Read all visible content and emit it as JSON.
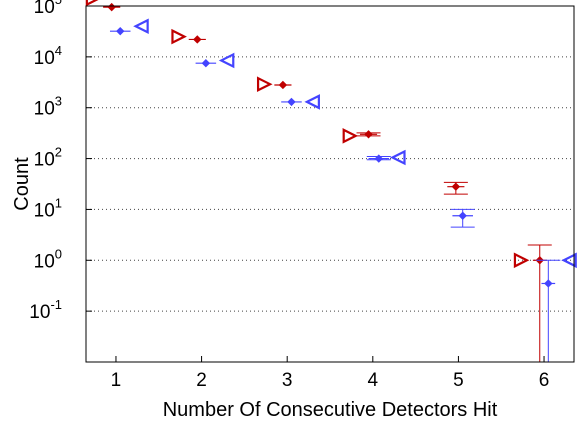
{
  "chart_data": {
    "type": "scatter",
    "xlabel": "Number Of Consecutive Detectors Hit",
    "ylabel": "Count",
    "yscale": "log",
    "xlim": [
      0.65,
      6.35
    ],
    "ylim": [
      0.01,
      100000
    ],
    "x_ticks": [
      "1",
      "2",
      "3",
      "4",
      "5",
      "6"
    ],
    "y_ticks": [
      {
        "base": "10",
        "exp": "-1",
        "value": 0.1
      },
      {
        "base": "10",
        "exp": "0",
        "value": 1
      },
      {
        "base": "10",
        "exp": "1",
        "value": 10
      },
      {
        "base": "10",
        "exp": "2",
        "value": 100
      },
      {
        "base": "10",
        "exp": "3",
        "value": 1000
      },
      {
        "base": "10",
        "exp": "4",
        "value": 10000
      },
      {
        "base": "10",
        "exp": "5",
        "value": 100000
      }
    ],
    "grid": true,
    "series": [
      {
        "color": "#c00000",
        "marker": "triangle-right",
        "points": [
          {
            "x": 0.73,
            "y": 140000
          },
          {
            "x": 1.73,
            "y": 25000
          },
          {
            "x": 2.73,
            "y": 2900
          },
          {
            "x": 3.73,
            "y": 280
          },
          {
            "x": 5.73,
            "y": 1.0
          }
        ]
      },
      {
        "color": "#c00000",
        "marker": "diamond",
        "points": [
          {
            "x": 0.95,
            "y": 95000,
            "ylo": 95000,
            "yhi": 95000,
            "xlo": 0.85,
            "xhi": 1.05
          },
          {
            "x": 1.95,
            "y": 22000,
            "ylo": 22000,
            "yhi": 22000,
            "xlo": 1.85,
            "xhi": 2.05
          },
          {
            "x": 2.95,
            "y": 2800,
            "ylo": 2800,
            "yhi": 2800,
            "xlo": 2.85,
            "xhi": 3.05
          },
          {
            "x": 3.95,
            "y": 300,
            "ylo": 280,
            "yhi": 320,
            "xlo": 3.85,
            "xhi": 4.05
          },
          {
            "x": 4.97,
            "y": 28,
            "ylo": 20,
            "yhi": 34,
            "xlo": 4.87,
            "xhi": 5.07
          },
          {
            "x": 5.95,
            "y": 1.0,
            "ylo": 0.01,
            "yhi": 2.0,
            "xlo": 5.87,
            "xhi": 6.03
          }
        ]
      },
      {
        "color": "#4444ff",
        "marker": "diamond",
        "points": [
          {
            "x": 1.05,
            "y": 32000,
            "ylo": 32000,
            "yhi": 32000,
            "xlo": 0.93,
            "xhi": 1.17
          },
          {
            "x": 2.05,
            "y": 7500,
            "ylo": 7500,
            "yhi": 7500,
            "xlo": 1.93,
            "xhi": 2.17
          },
          {
            "x": 3.05,
            "y": 1300,
            "ylo": 1300,
            "yhi": 1300,
            "xlo": 2.93,
            "xhi": 3.17
          },
          {
            "x": 4.07,
            "y": 100,
            "ylo": 95,
            "yhi": 110,
            "xlo": 3.95,
            "xhi": 4.19
          },
          {
            "x": 5.05,
            "y": 7.5,
            "ylo": 4.5,
            "yhi": 10.0,
            "xlo": 4.93,
            "xhi": 5.17
          },
          {
            "x": 6.05,
            "y": 0.35,
            "ylo": 0.01,
            "yhi": 1.0,
            "xlo": 5.97,
            "xhi": 6.13
          }
        ]
      },
      {
        "color": "#4444ff",
        "marker": "triangle-left",
        "points": [
          {
            "x": 1.3,
            "y": 40000
          },
          {
            "x": 2.3,
            "y": 8500
          },
          {
            "x": 3.3,
            "y": 1300
          },
          {
            "x": 4.3,
            "y": 105
          },
          {
            "x": 6.3,
            "y": 1.0
          }
        ]
      }
    ]
  }
}
